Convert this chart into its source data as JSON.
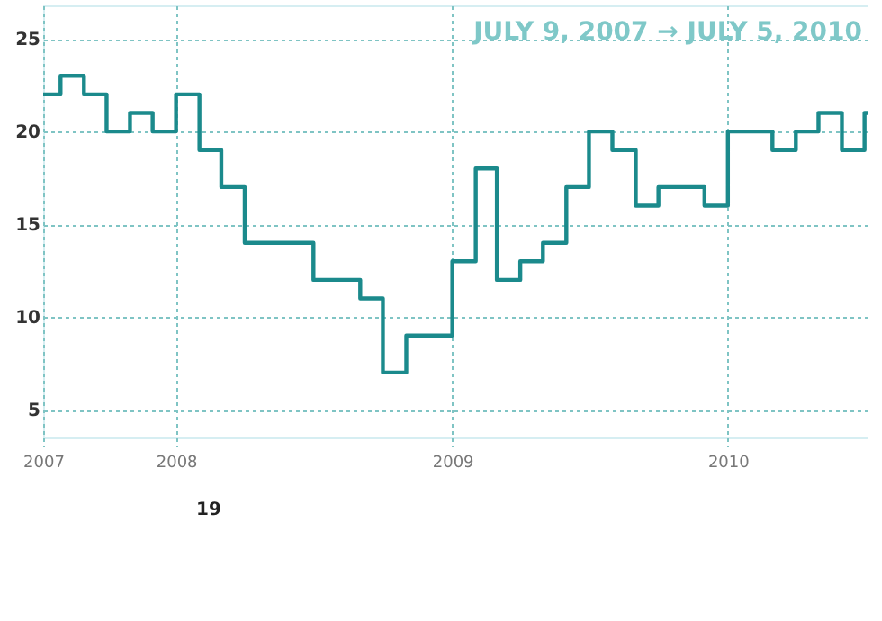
{
  "chart_data": {
    "type": "step",
    "x": [
      "2007-07-09",
      "2007-08",
      "2007-09",
      "2007-10",
      "2007-11",
      "2007-12",
      "2008-01",
      "2008-02",
      "2008-03",
      "2008-04",
      "2008-07",
      "2008-09",
      "2008-10",
      "2008-11",
      "2009-01",
      "2009-02",
      "2009-03",
      "2009-04",
      "2009-05",
      "2009-06",
      "2009-07",
      "2009-08",
      "2009-09",
      "2009-10",
      "2009-12",
      "2010-01",
      "2010-03",
      "2010-04",
      "2010-05",
      "2010-06",
      "2010-07",
      "2010-07-05"
    ],
    "series": [
      {
        "color": "#1b8a8c",
        "values": [
          22,
          23,
          22,
          20,
          21,
          20,
          22,
          19,
          17,
          14,
          12,
          11,
          7,
          9,
          13,
          18,
          12,
          13,
          14,
          17,
          20,
          19,
          16,
          17,
          16,
          20,
          19,
          20,
          21,
          19,
          21,
          21
        ]
      }
    ],
    "xlim": [
      "2007-07-09",
      "2010-07-05"
    ],
    "xticks": [
      {
        "value": "2007-07-09",
        "label": "2007"
      },
      {
        "value": "2008-01-01",
        "label": "2008"
      },
      {
        "value": "2009-01-01",
        "label": "2009"
      },
      {
        "value": "2010-01-01",
        "label": "2010"
      }
    ],
    "ylim": [
      3.5,
      26.8
    ],
    "yticks": [
      5,
      10,
      15,
      20,
      25
    ],
    "grid": true,
    "annotations": [
      "JULY 9, 2007 → JULY 5, 2010",
      "19"
    ]
  }
}
